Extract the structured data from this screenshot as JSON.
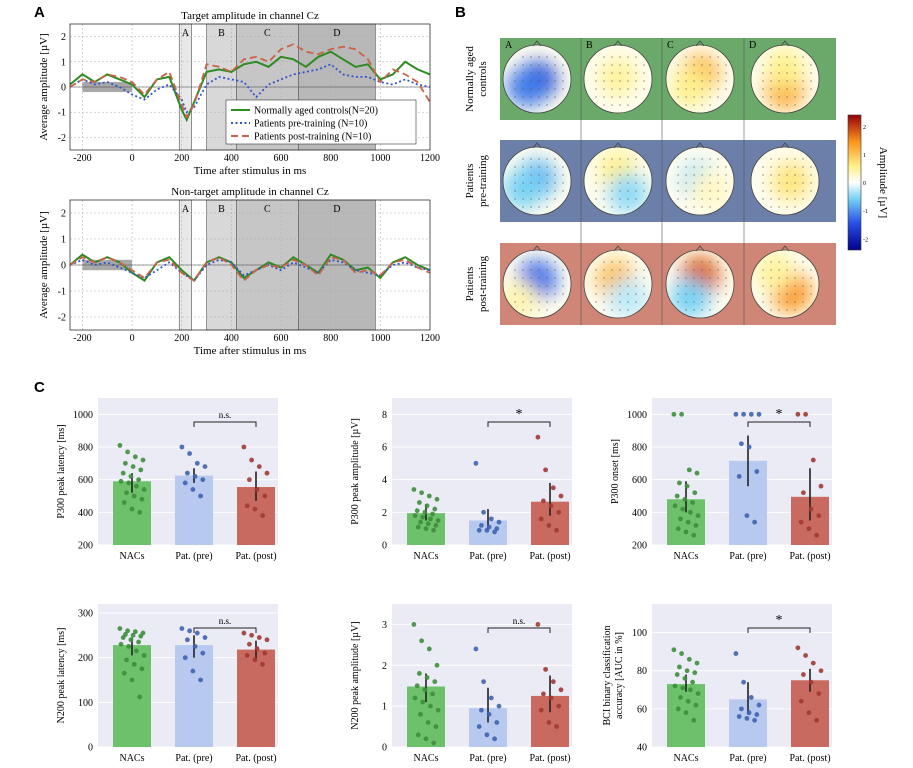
{
  "panels": {
    "a": "A",
    "b": "B",
    "c": "C"
  },
  "panel_a": {
    "legend": [
      {
        "label": "Normally aged controls(N=20)",
        "color": "#2e8b22",
        "style": "solid"
      },
      {
        "label": "Patients pre-training (N=10)",
        "color": "#3355cc",
        "style": "dotted"
      },
      {
        "label": "Patients post-training (N=10)",
        "color": "#c8644a",
        "style": "dashed"
      }
    ],
    "window_labels": [
      "A",
      "B",
      "C",
      "D"
    ]
  },
  "panel_b": {
    "window_labels": [
      "A",
      "B",
      "C",
      "D"
    ],
    "rows": [
      {
        "label_line1": "Normally aged",
        "label_line2": "controls",
        "bg": "#6aa96a"
      },
      {
        "label_line1": "Patients",
        "label_line2": "pre-training",
        "bg": "#6b7fa8"
      },
      {
        "label_line1": "Patients",
        "label_line2": "post-training",
        "bg": "#cf8676"
      }
    ],
    "colorbar": {
      "label": "Amplitude [µV]",
      "ticks": [
        "2",
        "1",
        "0",
        "-1",
        "-2"
      ],
      "range": [
        -2.4,
        2.4
      ]
    },
    "maps": [
      [
        [
          {
            "dx": 0,
            "dy": 2,
            "v": -1.7
          },
          {
            "dx": -10,
            "dy": 8,
            "v": -1.2
          }
        ],
        [
          {
            "dx": 0,
            "dy": -2,
            "v": 0.5
          }
        ],
        [
          {
            "dx": 0,
            "dy": -5,
            "v": 1.2
          },
          {
            "dx": -10,
            "dy": 8,
            "v": 0.6
          }
        ],
        [
          {
            "dx": 0,
            "dy": 10,
            "v": 1.3
          },
          {
            "dx": 0,
            "dy": -10,
            "v": 0.6
          }
        ]
      ],
      [
        [
          {
            "dx": 0,
            "dy": -2,
            "v": -0.8
          },
          {
            "dx": -14,
            "dy": 8,
            "v": -0.6
          }
        ],
        [
          {
            "dx": 0,
            "dy": -10,
            "v": 0.6
          },
          {
            "dx": 10,
            "dy": 12,
            "v": -0.5
          }
        ],
        [
          {
            "dx": 0,
            "dy": 0,
            "v": -0.4
          },
          {
            "dx": 10,
            "dy": 8,
            "v": 0.3
          }
        ],
        [
          {
            "dx": 6,
            "dy": 0,
            "v": 0.7
          }
        ]
      ],
      [
        [
          {
            "dx": 0,
            "dy": -4,
            "v": -1.3
          },
          {
            "dx": -18,
            "dy": 16,
            "v": 0.4
          }
        ],
        [
          {
            "dx": -2,
            "dy": -4,
            "v": 1.1
          },
          {
            "dx": 10,
            "dy": 14,
            "v": -0.3
          }
        ],
        [
          {
            "dx": 0,
            "dy": -8,
            "v": 1.8
          },
          {
            "dx": -10,
            "dy": 14,
            "v": -0.6
          }
        ],
        [
          {
            "dx": 6,
            "dy": 8,
            "v": 1.5
          },
          {
            "dx": -10,
            "dy": -12,
            "v": 0.5
          }
        ]
      ]
    ]
  },
  "chart_data": [
    {
      "type": "line",
      "title": "Target amplitude in channel Cz",
      "xlabel": "Time after stimulus in ms",
      "ylabel": "Average amplitude [µV]",
      "xlim": [
        -250,
        1200
      ],
      "ylim": [
        -2.5,
        2.5
      ],
      "xticks": [
        -200,
        0,
        200,
        400,
        600,
        800,
        1000,
        1200
      ],
      "xtick_labels": [
        "-200",
        "0",
        "200",
        "400",
        "600",
        "800",
        "1000",
        "1200"
      ],
      "yticks": [
        2,
        1,
        0,
        -1,
        -2
      ],
      "ytick_labels": [
        "2",
        "1",
        "0",
        "-1",
        "-2"
      ],
      "windows": [
        {
          "label": "A",
          "start": 190,
          "end": 240,
          "shade": "#e8e8e8"
        },
        {
          "label": "B",
          "start": 300,
          "end": 420,
          "shade": "#d8d8d8"
        },
        {
          "label": "C",
          "start": 420,
          "end": 670,
          "shade": "#c6c6c6"
        },
        {
          "label": "D",
          "start": 670,
          "end": 980,
          "shade": "#b8b8b8"
        }
      ],
      "baseline": {
        "start": -200,
        "end": 0
      },
      "x": [
        -250,
        -200,
        -150,
        -100,
        -50,
        0,
        50,
        100,
        150,
        200,
        220,
        250,
        300,
        350,
        400,
        450,
        500,
        550,
        600,
        650,
        700,
        750,
        800,
        850,
        900,
        950,
        1000,
        1050,
        1100,
        1150,
        1200
      ],
      "series": [
        {
          "name": "Normally aged controls(N=20)",
          "color": "#2e8b22",
          "style": "solid",
          "values": [
            0.1,
            0.5,
            0.2,
            0.5,
            0.3,
            0.1,
            -0.4,
            0.3,
            0.4,
            -0.9,
            -1.3,
            -0.6,
            0.6,
            0.7,
            0.6,
            0.9,
            1.0,
            0.8,
            1.2,
            1.1,
            0.8,
            1.2,
            1.4,
            1.1,
            0.8,
            0.9,
            0.3,
            0.5,
            1.0,
            0.7,
            0.5
          ]
        },
        {
          "name": "Patients pre-training (N=10)",
          "color": "#3355cc",
          "style": "dotted",
          "values": [
            0.0,
            0.3,
            0.1,
            0.2,
            0.0,
            -0.3,
            -0.5,
            -0.1,
            0.1,
            -0.5,
            -1.0,
            -0.8,
            0.1,
            0.4,
            0.3,
            0.2,
            -0.4,
            0.1,
            0.3,
            0.5,
            0.6,
            0.7,
            0.9,
            0.5,
            0.4,
            0.4,
            0.2,
            0.1,
            0.3,
            0.1,
            0.0
          ]
        },
        {
          "name": "Patients post-training (N=10)",
          "color": "#c8644a",
          "style": "dashed",
          "values": [
            0.0,
            0.3,
            0.2,
            0.5,
            0.4,
            0.2,
            -0.3,
            0.3,
            0.6,
            -0.7,
            -1.2,
            -0.7,
            0.9,
            0.8,
            0.6,
            1.1,
            1.2,
            1.0,
            1.5,
            1.7,
            1.4,
            1.3,
            1.5,
            1.6,
            1.5,
            1.1,
            0.2,
            0.7,
            0.5,
            0.2,
            -0.6
          ]
        }
      ]
    },
    {
      "type": "line",
      "title": "Non-target amplitude in channel Cz",
      "xlabel": "Time after stimulus in ms",
      "ylabel": "Average amplitude [µV]",
      "xlim": [
        -250,
        1200
      ],
      "ylim": [
        -2.5,
        2.5
      ],
      "xticks": [
        -200,
        0,
        200,
        400,
        600,
        800,
        1000,
        1200
      ],
      "xtick_labels": [
        "-200",
        "0",
        "200",
        "400",
        "600",
        "800",
        "1000",
        "1200"
      ],
      "yticks": [
        2,
        1,
        0,
        -1,
        -2
      ],
      "ytick_labels": [
        "2",
        "1",
        "0",
        "-1",
        "-2"
      ],
      "windows": [
        {
          "label": "A",
          "start": 190,
          "end": 240,
          "shade": "#e8e8e8"
        },
        {
          "label": "B",
          "start": 300,
          "end": 420,
          "shade": "#d8d8d8"
        },
        {
          "label": "C",
          "start": 420,
          "end": 670,
          "shade": "#c6c6c6"
        },
        {
          "label": "D",
          "start": 670,
          "end": 980,
          "shade": "#b8b8b8"
        }
      ],
      "baseline": {
        "start": -200,
        "end": 0
      },
      "x": [
        -250,
        -200,
        -150,
        -100,
        -50,
        0,
        50,
        100,
        150,
        200,
        250,
        300,
        350,
        400,
        450,
        500,
        550,
        600,
        650,
        700,
        750,
        800,
        850,
        900,
        950,
        1000,
        1050,
        1100,
        1150,
        1200
      ],
      "series": [
        {
          "name": "Normally aged controls(N=20)",
          "color": "#2e8b22",
          "style": "solid",
          "values": [
            0.0,
            0.4,
            0.1,
            0.3,
            0.1,
            -0.3,
            -0.6,
            0.1,
            0.3,
            -0.2,
            -0.6,
            0.1,
            0.3,
            0.1,
            -0.5,
            -0.2,
            0.1,
            -0.1,
            0.3,
            0.0,
            -0.3,
            0.4,
            0.2,
            -0.2,
            -0.1,
            -0.5,
            0.1,
            0.3,
            0.0,
            -0.2
          ]
        },
        {
          "name": "Patients pre-training (N=10)",
          "color": "#3355cc",
          "style": "dotted",
          "values": [
            0.0,
            0.2,
            0.0,
            0.1,
            -0.1,
            -0.3,
            -0.5,
            -0.2,
            0.1,
            -0.3,
            -0.6,
            0.0,
            0.2,
            0.1,
            -0.4,
            -0.2,
            0.0,
            -0.2,
            0.1,
            -0.1,
            -0.3,
            0.2,
            0.1,
            -0.2,
            -0.3,
            -0.4,
            0.0,
            0.1,
            -0.1,
            -0.2
          ]
        },
        {
          "name": "Patients post-training (N=10)",
          "color": "#c8644a",
          "style": "dashed",
          "values": [
            0.0,
            0.3,
            0.1,
            0.3,
            0.1,
            -0.2,
            -0.5,
            0.1,
            0.2,
            -0.3,
            -0.6,
            0.1,
            0.3,
            0.0,
            -0.6,
            -0.2,
            0.0,
            -0.1,
            0.2,
            0.0,
            -0.4,
            0.3,
            0.2,
            -0.3,
            -0.2,
            -0.4,
            0.1,
            0.2,
            -0.1,
            -0.3
          ]
        }
      ]
    },
    {
      "type": "bar",
      "ylabel": "P300 peak latency [ms]",
      "categories": [
        "NACs",
        "Pat. (pre)",
        "Pat. (post)"
      ],
      "values": [
        590,
        625,
        555
      ],
      "errors": [
        [
          520,
          640
        ],
        [
          580,
          670
        ],
        [
          470,
          650
        ]
      ],
      "ylim": [
        200,
        1100
      ],
      "yticks": [
        200,
        400,
        600,
        800,
        1000
      ],
      "ytick_labels": [
        "200",
        "400",
        "600",
        "800",
        "1000"
      ],
      "significance": {
        "from": 1,
        "to": 2,
        "label": "n.s."
      },
      "points": [
        [
          810,
          770,
          740,
          720,
          700,
          680,
          660,
          640,
          620,
          600,
          590,
          580,
          560,
          540,
          520,
          500,
          480,
          460,
          420,
          400
        ],
        [
          800,
          760,
          700,
          680,
          640,
          620,
          600,
          580,
          540,
          500
        ],
        [
          800,
          720,
          680,
          640,
          600,
          540,
          500,
          440,
          420,
          380
        ]
      ]
    },
    {
      "type": "bar",
      "ylabel": "P300 peak amplitude [µV]",
      "categories": [
        "NACs",
        "Pat. (pre)",
        "Pat. (post)"
      ],
      "values": [
        1.95,
        1.5,
        2.65
      ],
      "errors": [
        [
          1.5,
          2.5
        ],
        [
          0.9,
          2.2
        ],
        [
          1.8,
          3.8
        ]
      ],
      "ylim": [
        0,
        9
      ],
      "yticks": [
        0,
        2,
        4,
        6,
        8
      ],
      "ytick_labels": [
        "0",
        "2",
        "4",
        "6",
        "8"
      ],
      "significance": {
        "from": 1,
        "to": 2,
        "label": "*"
      },
      "points": [
        [
          3.4,
          3.2,
          3.0,
          2.8,
          2.6,
          2.4,
          2.2,
          2.1,
          2.0,
          1.9,
          1.8,
          1.7,
          1.6,
          1.5,
          1.4,
          1.3,
          1.2,
          1.1,
          1.0,
          0.9
        ],
        [
          5.0,
          2.0,
          1.6,
          1.4,
          1.2,
          1.1,
          1.0,
          0.9,
          0.9,
          0.8
        ],
        [
          6.6,
          4.6,
          3.5,
          3.0,
          2.7,
          2.4,
          2.0,
          1.6,
          1.2,
          0.9
        ]
      ]
    },
    {
      "type": "bar",
      "ylabel": "P300 onset [ms]",
      "categories": [
        "NACs",
        "Pat. (pre)",
        "Pat. (post)"
      ],
      "values": [
        480,
        715,
        495
      ],
      "errors": [
        [
          400,
          590
        ],
        [
          560,
          870
        ],
        [
          350,
          670
        ]
      ],
      "ylim": [
        200,
        1100
      ],
      "yticks": [
        200,
        400,
        600,
        800,
        1000
      ],
      "ytick_labels": [
        "200",
        "400",
        "600",
        "800",
        "1000"
      ],
      "significance": {
        "from": 1,
        "to": 2,
        "label": "*"
      },
      "points": [
        [
          1000,
          1000,
          660,
          640,
          580,
          560,
          520,
          500,
          480,
          460,
          440,
          420,
          400,
          380,
          360,
          340,
          320,
          300,
          280,
          260
        ],
        [
          1000,
          1000,
          1000,
          1000,
          820,
          800,
          650,
          620,
          380,
          340
        ],
        [
          1000,
          1000,
          720,
          560,
          520,
          420,
          380,
          340,
          300,
          260
        ]
      ]
    },
    {
      "type": "bar",
      "ylabel": "N200 peak latency [ms]",
      "categories": [
        "NACs",
        "Pat. (pre)",
        "Pat. (post)"
      ],
      "values": [
        228,
        228,
        218
      ],
      "errors": [
        [
          205,
          245
        ],
        [
          200,
          250
        ],
        [
          195,
          238
        ]
      ],
      "ylim": [
        0,
        320
      ],
      "yticks": [
        0,
        100,
        200,
        300
      ],
      "ytick_labels": [
        "0",
        "100",
        "200",
        "300"
      ],
      "significance": {
        "from": 1,
        "to": 2,
        "label": "n.s."
      },
      "points": [
        [
          265,
          260,
          258,
          255,
          252,
          250,
          248,
          245,
          240,
          235,
          230,
          225,
          215,
          205,
          195,
          185,
          175,
          165,
          150,
          112
        ],
        [
          265,
          260,
          255,
          245,
          240,
          225,
          210,
          200,
          170,
          150
        ],
        [
          255,
          250,
          245,
          240,
          230,
          220,
          210,
          205,
          195,
          185
        ]
      ]
    },
    {
      "type": "bar",
      "ylabel": "N200 peak amplitude [µV]",
      "categories": [
        "NACs",
        "Pat. (pre)",
        "Pat. (post)"
      ],
      "values": [
        1.48,
        0.95,
        1.25
      ],
      "errors": [
        [
          1.1,
          1.8
        ],
        [
          0.6,
          1.45
        ],
        [
          0.85,
          1.75
        ]
      ],
      "ylim": [
        0,
        3.5
      ],
      "yticks": [
        0,
        1,
        2,
        3
      ],
      "ytick_labels": [
        "0",
        "1",
        "2",
        "3"
      ],
      "significance": {
        "from": 1,
        "to": 2,
        "label": "n.s."
      },
      "points": [
        [
          3.0,
          2.6,
          2.4,
          2.0,
          1.8,
          1.7,
          1.6,
          1.5,
          1.4,
          1.3,
          1.2,
          1.1,
          1.0,
          0.9,
          0.8,
          0.6,
          0.5,
          0.3,
          0.2,
          0.1
        ],
        [
          2.4,
          1.6,
          1.2,
          1.0,
          0.9,
          0.8,
          0.6,
          0.5,
          0.3,
          0.2
        ],
        [
          3.0,
          1.9,
          1.6,
          1.4,
          1.3,
          1.2,
          1.0,
          0.9,
          0.6,
          0.5
        ]
      ]
    },
    {
      "type": "bar",
      "ylabel": "BCI binary classification accuracy [AUC in %]",
      "ylabel_line1": "BCI binary classification",
      "ylabel_line2": "accuracy [AUC in %]",
      "categories": [
        "NACs",
        "Pat. (pre)",
        "Pat. (post)"
      ],
      "values": [
        73,
        65,
        75
      ],
      "errors": [
        [
          69,
          78
        ],
        [
          57,
          74
        ],
        [
          69,
          81
        ]
      ],
      "ylim": [
        40,
        115
      ],
      "yticks": [
        40,
        60,
        80,
        100
      ],
      "ytick_labels": [
        "40",
        "60",
        "80",
        "100"
      ],
      "significance": {
        "from": 1,
        "to": 2,
        "label": "*"
      },
      "points": [
        [
          91,
          89,
          86,
          84,
          82,
          80,
          79,
          78,
          76,
          74,
          72,
          71,
          70,
          68,
          66,
          64,
          62,
          60,
          58,
          54
        ],
        [
          89,
          74,
          66,
          62,
          60,
          58,
          57,
          56,
          55,
          54
        ],
        [
          92,
          88,
          84,
          80,
          78,
          74,
          68,
          64,
          58,
          54
        ]
      ]
    }
  ]
}
